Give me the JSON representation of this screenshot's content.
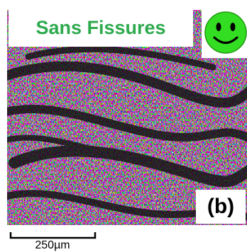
{
  "label": "Sans Fissures",
  "panel": "(b)",
  "scale_bar": "250µm"
}
